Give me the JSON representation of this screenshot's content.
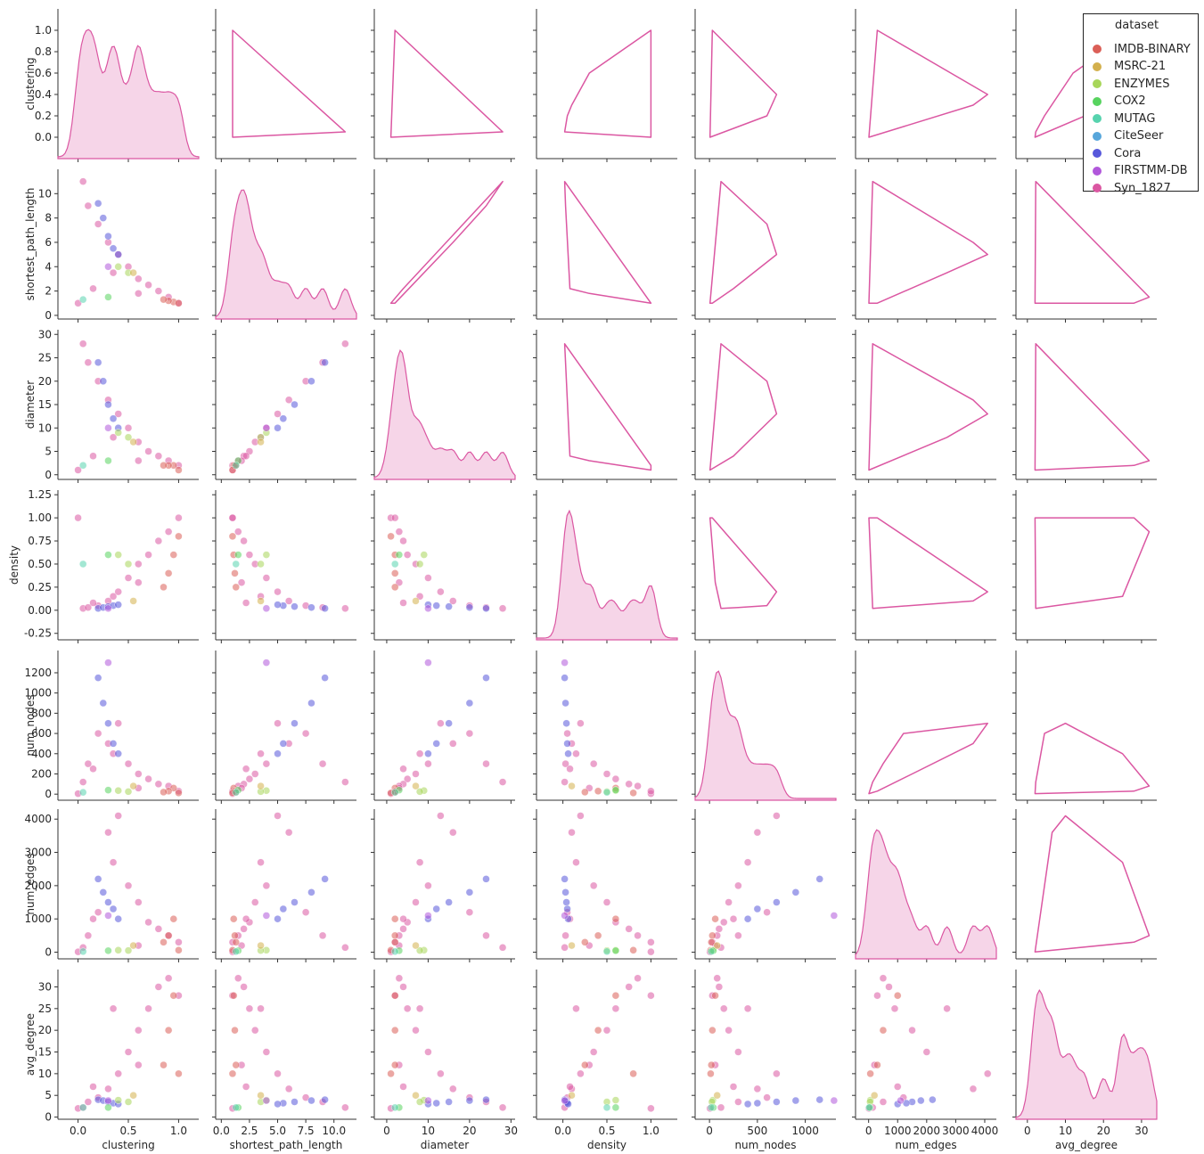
{
  "chart_data": {
    "type": "scatter",
    "kind": "pairplot",
    "variables": [
      "clustering",
      "shortest_path_length",
      "diameter",
      "density",
      "num_nodes",
      "num_edges",
      "avg_degree"
    ],
    "diagonal": "kde",
    "lower": "scatter",
    "upper": "kde-contour",
    "hue": "dataset",
    "legend": {
      "title": "dataset",
      "placement": "top-right",
      "entries": [
        {
          "name": "IMDB-BINARY",
          "color": "#db5f57"
        },
        {
          "name": "MSRC-21",
          "color": "#d3b04d"
        },
        {
          "name": "ENZYMES",
          "color": "#a8d65a"
        },
        {
          "name": "COX2",
          "color": "#57d35f"
        },
        {
          "name": "MUTAG",
          "color": "#57d3ae"
        },
        {
          "name": "CiteSeer",
          "color": "#57a6db"
        },
        {
          "name": "Cora",
          "color": "#5758db"
        },
        {
          "name": "FIRSTMM-DB",
          "color": "#b157db"
        },
        {
          "name": "Syn_1827",
          "color": "#db57a2"
        }
      ]
    },
    "axes": {
      "clustering": {
        "range": [
          -0.2,
          1.2
        ],
        "ticks": [
          0.0,
          0.5,
          1.0
        ],
        "ticklabels": [
          "0.0",
          "0.5",
          "1.0"
        ],
        "row_range": [
          -0.2,
          1.2
        ],
        "row_ticks": [
          0.0,
          0.2,
          0.4,
          0.6,
          0.8,
          1.0
        ],
        "row_ticklabels": [
          "0.0",
          "0.2",
          "0.4",
          "0.6",
          "0.8",
          "1.0"
        ]
      },
      "shortest_path_length": {
        "range": [
          -0.5,
          12
        ],
        "ticks": [
          0.0,
          2.5,
          5.0,
          7.5,
          10.0
        ],
        "ticklabels": [
          "0.0",
          "2.5",
          "5.0",
          "7.5",
          "10.0"
        ],
        "row_range": [
          -0.3,
          12
        ],
        "row_ticks": [
          0,
          2,
          4,
          6,
          8,
          10
        ],
        "row_ticklabels": [
          "0",
          "2",
          "4",
          "6",
          "8",
          "10"
        ]
      },
      "diameter": {
        "range": [
          -3,
          31
        ],
        "ticks": [
          0,
          10,
          20,
          30
        ],
        "ticklabels": [
          "0",
          "10",
          "20",
          "30"
        ],
        "row_range": [
          -1,
          31
        ],
        "row_ticks": [
          0,
          5,
          10,
          15,
          20,
          25,
          30
        ],
        "row_ticklabels": [
          "0",
          "5",
          "10",
          "15",
          "20",
          "25",
          "30"
        ]
      },
      "density": {
        "range": [
          -0.3,
          1.3
        ],
        "ticks": [
          0.0,
          0.5,
          1.0
        ],
        "ticklabels": [
          "0.0",
          "0.5",
          "1.0"
        ],
        "row_range": [
          -0.32,
          1.3
        ],
        "row_ticks": [
          -0.25,
          0.0,
          0.25,
          0.5,
          0.75,
          1.0,
          1.25
        ],
        "row_ticklabels": [
          "-0.25",
          "0.00",
          "0.25",
          "0.50",
          "0.75",
          "1.00",
          "1.25"
        ]
      },
      "num_nodes": {
        "range": [
          -150,
          1320
        ],
        "ticks": [
          0,
          500,
          1000
        ],
        "ticklabels": [
          "0",
          "500",
          "1000"
        ],
        "row_range": [
          -60,
          1420
        ],
        "row_ticks": [
          0,
          200,
          400,
          600,
          800,
          1000,
          1200
        ],
        "row_ticklabels": [
          "0",
          "200",
          "400",
          "600",
          "800",
          "1000",
          "1200"
        ]
      },
      "num_edges": {
        "range": [
          -450,
          4400
        ],
        "ticks": [
          0,
          1000,
          2000,
          3000,
          4000
        ],
        "ticklabels": [
          "0",
          "1000",
          "2000",
          "3000",
          "4000"
        ],
        "row_range": [
          -200,
          4300
        ],
        "row_ticks": [
          0,
          1000,
          2000,
          3000,
          4000
        ],
        "row_ticklabels": [
          "0",
          "1000",
          "2000",
          "3000",
          "4000"
        ]
      },
      "avg_degree": {
        "range": [
          -3,
          34
        ],
        "ticks": [
          0,
          10,
          20,
          30
        ],
        "ticklabels": [
          "0",
          "10",
          "20",
          "30"
        ],
        "row_range": [
          -0.5,
          34
        ],
        "row_ticks": [
          0,
          5,
          10,
          15,
          20,
          25,
          30
        ],
        "row_ticklabels": [
          "0",
          "5",
          "10",
          "15",
          "20",
          "25",
          "30"
        ]
      }
    },
    "scatter_series": [
      {
        "name": "Syn_1827",
        "color": "#db57a2",
        "points": [
          {
            "clustering": 0.0,
            "shortest_path_length": 1.0,
            "diameter": 1,
            "density": 1.0,
            "num_nodes": 5,
            "num_edges": 10,
            "avg_degree": 2.0
          },
          {
            "clustering": 0.05,
            "shortest_path_length": 11.0,
            "diameter": 28,
            "density": 0.02,
            "num_nodes": 120,
            "num_edges": 140,
            "avg_degree": 2.2
          },
          {
            "clustering": 0.1,
            "shortest_path_length": 9.0,
            "diameter": 24,
            "density": 0.03,
            "num_nodes": 300,
            "num_edges": 500,
            "avg_degree": 3.5
          },
          {
            "clustering": 0.2,
            "shortest_path_length": 7.5,
            "diameter": 20,
            "density": 0.05,
            "num_nodes": 600,
            "num_edges": 1200,
            "avg_degree": 4.5
          },
          {
            "clustering": 0.3,
            "shortest_path_length": 6.0,
            "diameter": 16,
            "density": 0.1,
            "num_nodes": 500,
            "num_edges": 3600,
            "avg_degree": 6.5
          },
          {
            "clustering": 0.4,
            "shortest_path_length": 5.0,
            "diameter": 13,
            "density": 0.2,
            "num_nodes": 700,
            "num_edges": 4100,
            "avg_degree": 10.0
          },
          {
            "clustering": 0.5,
            "shortest_path_length": 4.0,
            "diameter": 10,
            "density": 0.35,
            "num_nodes": 300,
            "num_edges": 2000,
            "avg_degree": 15.0
          },
          {
            "clustering": 0.6,
            "shortest_path_length": 3.0,
            "diameter": 7,
            "density": 0.5,
            "num_nodes": 200,
            "num_edges": 1500,
            "avg_degree": 20.0
          },
          {
            "clustering": 0.7,
            "shortest_path_length": 2.5,
            "diameter": 5,
            "density": 0.6,
            "num_nodes": 150,
            "num_edges": 900,
            "avg_degree": 25.0
          },
          {
            "clustering": 0.8,
            "shortest_path_length": 2.0,
            "diameter": 4,
            "density": 0.75,
            "num_nodes": 100,
            "num_edges": 700,
            "avg_degree": 30.0
          },
          {
            "clustering": 0.9,
            "shortest_path_length": 1.5,
            "diameter": 3,
            "density": 0.85,
            "num_nodes": 80,
            "num_edges": 500,
            "avg_degree": 32.0
          },
          {
            "clustering": 1.0,
            "shortest_path_length": 1.0,
            "diameter": 2,
            "density": 1.0,
            "num_nodes": 30,
            "num_edges": 300,
            "avg_degree": 28.0
          },
          {
            "clustering": 0.35,
            "shortest_path_length": 3.5,
            "diameter": 8,
            "density": 0.15,
            "num_nodes": 400,
            "num_edges": 2700,
            "avg_degree": 25.0
          },
          {
            "clustering": 0.15,
            "shortest_path_length": 2.2,
            "diameter": 4,
            "density": 0.08,
            "num_nodes": 250,
            "num_edges": 1000,
            "avg_degree": 7.0
          },
          {
            "clustering": 0.6,
            "shortest_path_length": 1.8,
            "diameter": 3,
            "density": 0.3,
            "num_nodes": 60,
            "num_edges": 200,
            "avg_degree": 12.0
          }
        ]
      },
      {
        "name": "Cora",
        "color": "#5758db",
        "points": [
          {
            "clustering": 0.2,
            "shortest_path_length": 9.2,
            "diameter": 24,
            "density": 0.02,
            "num_nodes": 1150,
            "num_edges": 2200,
            "avg_degree": 4.0
          },
          {
            "clustering": 0.25,
            "shortest_path_length": 8.0,
            "diameter": 20,
            "density": 0.03,
            "num_nodes": 900,
            "num_edges": 1800,
            "avg_degree": 3.8
          },
          {
            "clustering": 0.3,
            "shortest_path_length": 6.5,
            "diameter": 15,
            "density": 0.04,
            "num_nodes": 700,
            "num_edges": 1500,
            "avg_degree": 3.5
          },
          {
            "clustering": 0.35,
            "shortest_path_length": 5.5,
            "diameter": 12,
            "density": 0.05,
            "num_nodes": 500,
            "num_edges": 1300,
            "avg_degree": 3.2
          },
          {
            "clustering": 0.4,
            "shortest_path_length": 5.0,
            "diameter": 10,
            "density": 0.06,
            "num_nodes": 400,
            "num_edges": 1000,
            "avg_degree": 3.0
          }
        ]
      },
      {
        "name": "IMDB-BINARY",
        "color": "#db5f57",
        "points": [
          {
            "clustering": 0.95,
            "shortest_path_length": 1.1,
            "diameter": 2,
            "density": 0.6,
            "num_nodes": 60,
            "num_edges": 1000,
            "avg_degree": 28.0
          },
          {
            "clustering": 0.9,
            "shortest_path_length": 1.2,
            "diameter": 2,
            "density": 0.4,
            "num_nodes": 30,
            "num_edges": 500,
            "avg_degree": 20.0
          },
          {
            "clustering": 0.85,
            "shortest_path_length": 1.3,
            "diameter": 2,
            "density": 0.25,
            "num_nodes": 20,
            "num_edges": 300,
            "avg_degree": 12.0
          },
          {
            "clustering": 1.0,
            "shortest_path_length": 1.0,
            "diameter": 1,
            "density": 0.8,
            "num_nodes": 12,
            "num_edges": 60,
            "avg_degree": 10.0
          }
        ]
      },
      {
        "name": "ENZYMES",
        "color": "#a8d65a",
        "points": [
          {
            "clustering": 0.4,
            "shortest_path_length": 4.0,
            "diameter": 9,
            "density": 0.6,
            "num_nodes": 35,
            "num_edges": 60,
            "avg_degree": 3.9
          },
          {
            "clustering": 0.5,
            "shortest_path_length": 3.5,
            "diameter": 8,
            "density": 0.5,
            "num_nodes": 25,
            "num_edges": 50,
            "avg_degree": 3.5
          }
        ]
      },
      {
        "name": "COX2",
        "color": "#57d35f",
        "points": [
          {
            "clustering": 0.3,
            "shortest_path_length": 1.5,
            "diameter": 3,
            "density": 0.6,
            "num_nodes": 40,
            "num_edges": 45,
            "avg_degree": 2.2
          }
        ]
      },
      {
        "name": "MUTAG",
        "color": "#57d3ae",
        "points": [
          {
            "clustering": 0.05,
            "shortest_path_length": 1.3,
            "diameter": 2,
            "density": 0.5,
            "num_nodes": 18,
            "num_edges": 20,
            "avg_degree": 2.2
          }
        ]
      },
      {
        "name": "MSRC-21",
        "color": "#d3b04d",
        "points": [
          {
            "clustering": 0.55,
            "shortest_path_length": 3.5,
            "diameter": 7,
            "density": 0.1,
            "num_nodes": 80,
            "num_edges": 200,
            "avg_degree": 5.0
          }
        ]
      },
      {
        "name": "FIRSTMM-DB",
        "color": "#b157db",
        "points": [
          {
            "clustering": 0.3,
            "shortest_path_length": 4.0,
            "diameter": 10,
            "density": 0.02,
            "num_nodes": 1300,
            "num_edges": 1100,
            "avg_degree": 3.8
          }
        ]
      }
    ]
  }
}
